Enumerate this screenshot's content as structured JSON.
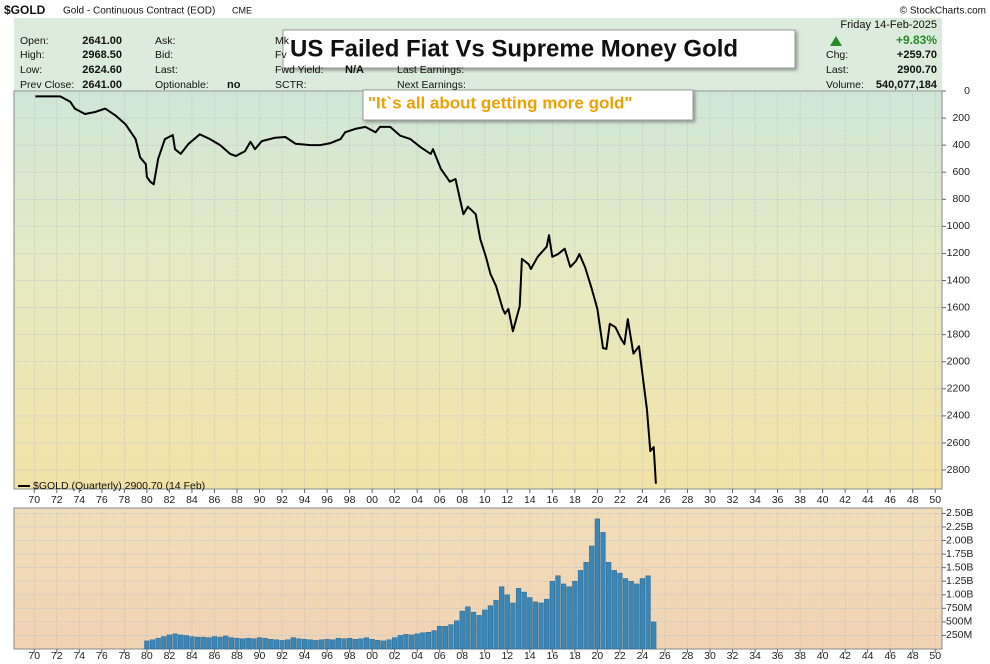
{
  "header": {
    "symbol": "$GOLD",
    "description": "Gold - Continuous Contract (EOD)",
    "exchange": "CME",
    "copyright": "© StockCharts.com",
    "columns": [
      [
        [
          "Open:",
          "2641.00"
        ],
        [
          "High:",
          "2968.50"
        ],
        [
          "Low:",
          "2624.60"
        ],
        [
          "Prev Close:",
          "2641.00"
        ]
      ],
      [
        [
          "Ask:"
        ],
        [
          "Bid:"
        ],
        [
          "Last:"
        ],
        [
          "Optionable:",
          "no"
        ]
      ],
      [
        [
          "Mk"
        ],
        [
          "Fv"
        ],
        [
          "Fwd Yield:",
          "N/A"
        ],
        [
          "SCTR:"
        ]
      ]
    ],
    "earnings": [
      "Last Earnings:",
      "Next Earnings:"
    ],
    "date": "Friday  14-Feb-2025",
    "change_pct": "+9.83%",
    "right": [
      [
        "Chg:",
        "+259.70"
      ],
      [
        "Last:",
        "2900.70"
      ],
      [
        "Volume:",
        "540,077,184"
      ]
    ]
  },
  "chart_data": [
    {
      "type": "line",
      "title": "US Failed Fiat Vs Supreme Money Gold",
      "annotation": "\"It`s all about getting more gold\"",
      "y_inverted": true,
      "grid": true,
      "xlim": [
        1968.2,
        2050.6
      ],
      "xticks": [
        {
          "value": 1970,
          "label": "70"
        },
        {
          "value": 1972,
          "label": "72"
        },
        {
          "value": 1974,
          "label": "74"
        },
        {
          "value": 1976,
          "label": "76"
        },
        {
          "value": 1978,
          "label": "78"
        },
        {
          "value": 1980,
          "label": "80"
        },
        {
          "value": 1982,
          "label": "82"
        },
        {
          "value": 1984,
          "label": "84"
        },
        {
          "value": 1986,
          "label": "86"
        },
        {
          "value": 1988,
          "label": "88"
        },
        {
          "value": 1990,
          "label": "90"
        },
        {
          "value": 1992,
          "label": "92"
        },
        {
          "value": 1994,
          "label": "94"
        },
        {
          "value": 1996,
          "label": "96"
        },
        {
          "value": 1998,
          "label": "98"
        },
        {
          "value": 2000,
          "label": "00"
        },
        {
          "value": 2002,
          "label": "02"
        },
        {
          "value": 2004,
          "label": "04"
        },
        {
          "value": 2006,
          "label": "06"
        },
        {
          "value": 2008,
          "label": "08"
        },
        {
          "value": 2010,
          "label": "10"
        },
        {
          "value": 2012,
          "label": "12"
        },
        {
          "value": 2014,
          "label": "14"
        },
        {
          "value": 2016,
          "label": "16"
        },
        {
          "value": 2018,
          "label": "18"
        },
        {
          "value": 2020,
          "label": "20"
        },
        {
          "value": 2022,
          "label": "22"
        },
        {
          "value": 2024,
          "label": "24"
        },
        {
          "value": 2026,
          "label": "26"
        },
        {
          "value": 2028,
          "label": "28"
        },
        {
          "value": 2030,
          "label": "30"
        },
        {
          "value": 2032,
          "label": "32"
        },
        {
          "value": 2034,
          "label": "34"
        },
        {
          "value": 2036,
          "label": "36"
        },
        {
          "value": 2038,
          "label": "38"
        },
        {
          "value": 2040,
          "label": "40"
        },
        {
          "value": 2042,
          "label": "42"
        },
        {
          "value": 2044,
          "label": "44"
        },
        {
          "value": 2046,
          "label": "46"
        },
        {
          "value": 2048,
          "label": "48"
        },
        {
          "value": 2050,
          "label": "50"
        }
      ],
      "ylim": [
        0,
        2940
      ],
      "yticks": [
        0,
        200,
        400,
        600,
        800,
        1000,
        1200,
        1400,
        1600,
        1800,
        2000,
        2200,
        2400,
        2600,
        2800
      ],
      "x": [
        1970.1,
        1972.3,
        1973.2,
        1973.6,
        1974.5,
        1975.4,
        1976.3,
        1977.2,
        1978.1,
        1979.0,
        1979.4,
        1979.9,
        1980.0,
        1980.3,
        1980.6,
        1981.0,
        1981.6,
        1982.3,
        1982.5,
        1983.0,
        1983.7,
        1984.7,
        1985.6,
        1986.5,
        1987.4,
        1987.9,
        1988.7,
        1989.2,
        1989.6,
        1990.2,
        1991.4,
        1992.3,
        1993.2,
        1994.5,
        1995.4,
        1996.3,
        1997.2,
        1997.6,
        1998.5,
        1999.4,
        2000.3,
        2000.7,
        2001.6,
        2002.5,
        2003.4,
        2004.3,
        2005.2,
        2005.4,
        2006.1,
        2006.9,
        2007.4,
        2007.8,
        2008.1,
        2008.5,
        2009.2,
        2009.6,
        2010.1,
        2010.5,
        2011.0,
        2011.6,
        2011.8,
        2012.1,
        2012.5,
        2013.1,
        2013.3,
        2013.9,
        2014.1,
        2014.7,
        2015.5,
        2015.7,
        2016.0,
        2016.5,
        2017.1,
        2017.6,
        2018.1,
        2018.4,
        2018.9,
        2019.5,
        2020.0,
        2020.5,
        2020.8,
        2021.1,
        2021.6,
        2022.1,
        2022.4,
        2022.7,
        2023.2,
        2023.7,
        2024.0,
        2024.4,
        2024.7,
        2025.0,
        2025.2
      ],
      "series": [
        {
          "name": "$GOLD (Quarterly) 2900.70 (14 Feb)",
          "color": "#000000",
          "values": [
            40,
            40,
            80,
            130,
            170,
            155,
            130,
            180,
            245,
            355,
            490,
            540,
            635,
            670,
            690,
            500,
            355,
            325,
            430,
            465,
            390,
            320,
            355,
            400,
            465,
            480,
            445,
            375,
            430,
            370,
            345,
            340,
            390,
            400,
            400,
            385,
            355,
            305,
            280,
            265,
            305,
            265,
            265,
            330,
            355,
            415,
            465,
            430,
            575,
            670,
            650,
            800,
            910,
            855,
            910,
            1095,
            1225,
            1350,
            1440,
            1610,
            1645,
            1610,
            1775,
            1590,
            1240,
            1280,
            1315,
            1225,
            1150,
            1065,
            1225,
            1205,
            1165,
            1300,
            1255,
            1205,
            1300,
            1460,
            1610,
            1900,
            1905,
            1720,
            1745,
            1830,
            1870,
            1685,
            1940,
            1885,
            2090,
            2350,
            2660,
            2630,
            2900.7
          ]
        }
      ]
    },
    {
      "type": "bar",
      "grid": true,
      "xlim": [
        1968.2,
        2050.6
      ],
      "xticks": [
        {
          "value": 1970,
          "label": "70"
        },
        {
          "value": 1972,
          "label": "72"
        },
        {
          "value": 1974,
          "label": "74"
        },
        {
          "value": 1976,
          "label": "76"
        },
        {
          "value": 1978,
          "label": "78"
        },
        {
          "value": 1980,
          "label": "80"
        },
        {
          "value": 1982,
          "label": "82"
        },
        {
          "value": 1984,
          "label": "84"
        },
        {
          "value": 1986,
          "label": "86"
        },
        {
          "value": 1988,
          "label": "88"
        },
        {
          "value": 1990,
          "label": "90"
        },
        {
          "value": 1992,
          "label": "92"
        },
        {
          "value": 1994,
          "label": "94"
        },
        {
          "value": 1996,
          "label": "96"
        },
        {
          "value": 1998,
          "label": "98"
        },
        {
          "value": 2000,
          "label": "00"
        },
        {
          "value": 2002,
          "label": "02"
        },
        {
          "value": 2004,
          "label": "04"
        },
        {
          "value": 2006,
          "label": "06"
        },
        {
          "value": 2008,
          "label": "08"
        },
        {
          "value": 2010,
          "label": "10"
        },
        {
          "value": 2012,
          "label": "12"
        },
        {
          "value": 2014,
          "label": "14"
        },
        {
          "value": 2016,
          "label": "16"
        },
        {
          "value": 2018,
          "label": "18"
        },
        {
          "value": 2020,
          "label": "20"
        },
        {
          "value": 2022,
          "label": "22"
        },
        {
          "value": 2024,
          "label": "24"
        },
        {
          "value": 2026,
          "label": "26"
        },
        {
          "value": 2028,
          "label": "28"
        },
        {
          "value": 2030,
          "label": "30"
        },
        {
          "value": 2032,
          "label": "32"
        },
        {
          "value": 2034,
          "label": "34"
        },
        {
          "value": 2036,
          "label": "36"
        },
        {
          "value": 2038,
          "label": "38"
        },
        {
          "value": 2040,
          "label": "40"
        },
        {
          "value": 2042,
          "label": "42"
        },
        {
          "value": 2044,
          "label": "44"
        },
        {
          "value": 2046,
          "label": "46"
        },
        {
          "value": 2048,
          "label": "48"
        },
        {
          "value": 2050,
          "label": "50"
        }
      ],
      "ylim": [
        0,
        2600
      ],
      "yticks": [
        {
          "value": 250,
          "label": "250M"
        },
        {
          "value": 500,
          "label": "500M"
        },
        {
          "value": 750,
          "label": "750M"
        },
        {
          "value": 1000,
          "label": "1.00B"
        },
        {
          "value": 1250,
          "label": "1.25B"
        },
        {
          "value": 1500,
          "label": "1.50B"
        },
        {
          "value": 1750,
          "label": "1.75B"
        },
        {
          "value": 2000,
          "label": "2.00B"
        },
        {
          "value": 2250,
          "label": "2.25B"
        },
        {
          "value": 2500,
          "label": "2.50B"
        }
      ],
      "x": [
        1980.0,
        1980.5,
        1981.0,
        1981.5,
        1982.0,
        1982.5,
        1983.0,
        1983.5,
        1984.0,
        1984.5,
        1985.0,
        1985.5,
        1986.0,
        1986.5,
        1987.0,
        1987.5,
        1988.0,
        1988.5,
        1989.0,
        1989.5,
        1990.0,
        1990.5,
        1991.0,
        1991.5,
        1992.0,
        1992.5,
        1993.0,
        1993.5,
        1994.0,
        1994.5,
        1995.0,
        1995.5,
        1996.0,
        1996.5,
        1997.0,
        1997.5,
        1998.0,
        1998.5,
        1999.0,
        1999.5,
        2000.0,
        2000.5,
        2001.0,
        2001.5,
        2002.0,
        2002.5,
        2003.0,
        2003.5,
        2004.0,
        2004.5,
        2005.0,
        2005.5,
        2006.0,
        2006.5,
        2007.0,
        2007.5,
        2008.0,
        2008.5,
        2009.0,
        2009.5,
        2010.0,
        2010.5,
        2011.0,
        2011.5,
        2012.0,
        2012.5,
        2013.0,
        2013.5,
        2014.0,
        2014.5,
        2015.0,
        2015.5,
        2016.0,
        2016.5,
        2017.0,
        2017.5,
        2018.0,
        2018.5,
        2019.0,
        2019.5,
        2020.0,
        2020.5,
        2021.0,
        2021.5,
        2022.0,
        2022.5,
        2023.0,
        2023.5,
        2024.0,
        2024.5,
        2025.0
      ],
      "series": [
        {
          "color": "#3b86b5",
          "values": [
            150,
            170,
            200,
            230,
            260,
            280,
            260,
            250,
            230,
            220,
            220,
            210,
            230,
            220,
            240,
            210,
            200,
            190,
            200,
            190,
            210,
            200,
            180,
            170,
            160,
            170,
            210,
            190,
            180,
            170,
            160,
            170,
            180,
            170,
            200,
            190,
            200,
            180,
            190,
            210,
            180,
            160,
            150,
            170,
            210,
            250,
            270,
            260,
            280,
            300,
            310,
            340,
            420,
            420,
            450,
            520,
            700,
            780,
            680,
            620,
            720,
            800,
            900,
            1150,
            1000,
            850,
            1120,
            1050,
            950,
            870,
            850,
            920,
            1250,
            1350,
            1200,
            1150,
            1250,
            1450,
            1600,
            1900,
            2400,
            2150,
            1600,
            1450,
            1400,
            1300,
            1250,
            1200,
            1300,
            1350,
            500
          ]
        }
      ]
    }
  ]
}
